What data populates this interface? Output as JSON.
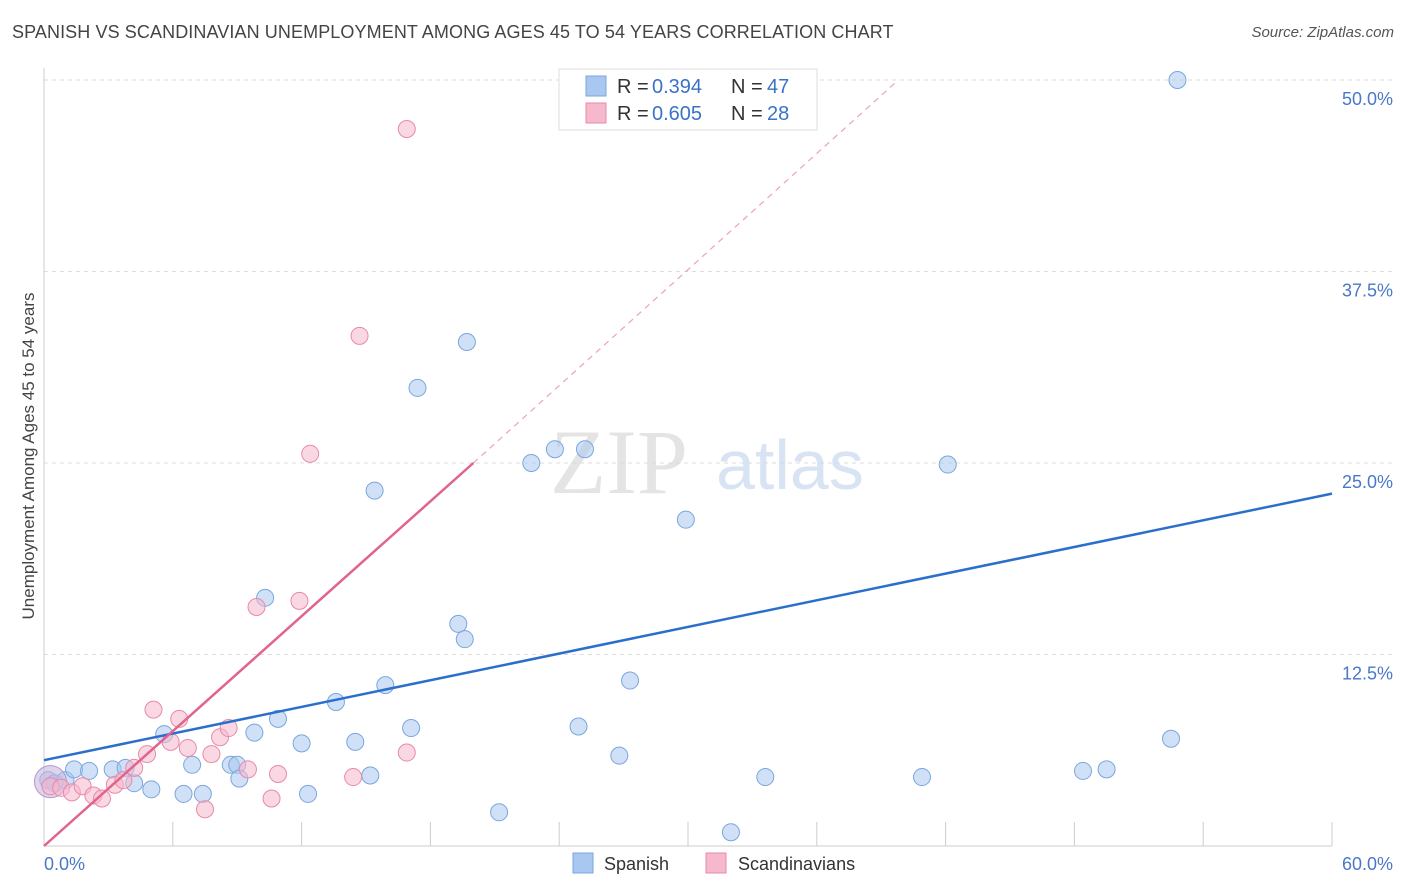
{
  "title": "SPANISH VS SCANDINAVIAN UNEMPLOYMENT AMONG AGES 45 TO 54 YEARS CORRELATION CHART",
  "source": "Source: ZipAtlas.com",
  "watermark": {
    "zip": "ZIP",
    "atlas": "atlas"
  },
  "colors": {
    "spanish_fill": "#a9c8f0",
    "spanish_stroke": "#7aa6de",
    "spanish_line": "#2b6fcc",
    "scand_fill": "#f5b8cc",
    "scand_stroke": "#e88aa8",
    "scand_line": "#e0648c",
    "tick_label": "#4a78c8",
    "grid": "#dddddd"
  },
  "legend": {
    "rows": [
      {
        "r_label": "R =",
        "r_value": "0.394",
        "n_label": "N =",
        "n_value": "47"
      },
      {
        "r_label": "R =",
        "r_value": "0.605",
        "n_label": "N =",
        "n_value": "28"
      }
    ]
  },
  "bottom_legend": [
    "Spanish",
    "Scandinavians"
  ],
  "chart_data": {
    "type": "scatter",
    "title": "SPANISH VS SCANDINAVIAN UNEMPLOYMENT AMONG AGES 45 TO 54 YEARS CORRELATION CHART",
    "xlabel": "",
    "ylabel": "Unemployment Among Ages 45 to 54 years",
    "xlim": [
      0,
      60
    ],
    "ylim": [
      0,
      51
    ],
    "x_tick_labels": [
      {
        "value": 0,
        "label": "0.0%"
      },
      {
        "value": 60,
        "label": "60.0%"
      }
    ],
    "y_tick_labels": [
      {
        "value": 12.5,
        "label": "12.5%"
      },
      {
        "value": 25,
        "label": "25.0%"
      },
      {
        "value": 37.5,
        "label": "37.5%"
      },
      {
        "value": 50,
        "label": "50.0%"
      }
    ],
    "x_ticks": [
      6,
      12,
      18,
      24,
      30,
      36,
      42,
      48,
      54,
      60
    ],
    "series": [
      {
        "name": "Spanish",
        "r": 0.394,
        "n": 47,
        "trend": {
          "x": [
            0,
            60
          ],
          "y": [
            5.6,
            23.0
          ]
        },
        "points": [
          [
            0.2,
            4.3
          ],
          [
            0.5,
            4.1
          ],
          [
            1.0,
            4.3
          ],
          [
            1.4,
            5.0
          ],
          [
            2.1,
            4.9
          ],
          [
            3.2,
            5.0
          ],
          [
            3.8,
            5.1
          ],
          [
            4.2,
            4.1
          ],
          [
            5.0,
            3.7
          ],
          [
            5.6,
            7.3
          ],
          [
            6.5,
            3.4
          ],
          [
            6.9,
            5.3
          ],
          [
            7.4,
            3.4
          ],
          [
            8.7,
            5.3
          ],
          [
            9.0,
            5.3
          ],
          [
            9.1,
            4.4
          ],
          [
            9.8,
            7.4
          ],
          [
            10.3,
            16.2
          ],
          [
            10.9,
            8.3
          ],
          [
            12.0,
            6.7
          ],
          [
            12.3,
            3.4
          ],
          [
            13.6,
            9.4
          ],
          [
            14.5,
            6.8
          ],
          [
            15.2,
            4.6
          ],
          [
            15.4,
            23.2
          ],
          [
            15.9,
            10.5
          ],
          [
            17.1,
            7.7
          ],
          [
            17.4,
            29.9
          ],
          [
            19.3,
            14.5
          ],
          [
            19.6,
            13.5
          ],
          [
            19.7,
            32.9
          ],
          [
            21.2,
            2.2
          ],
          [
            22.7,
            25.0
          ],
          [
            23.8,
            25.9
          ],
          [
            25.2,
            25.9
          ],
          [
            24.9,
            7.8
          ],
          [
            26.8,
            5.9
          ],
          [
            27.3,
            10.8
          ],
          [
            29.9,
            21.3
          ],
          [
            32.0,
            0.9
          ],
          [
            33.6,
            4.5
          ],
          [
            40.9,
            4.5
          ],
          [
            42.1,
            24.9
          ],
          [
            48.4,
            4.9
          ],
          [
            52.5,
            7.0
          ],
          [
            52.8,
            50.0
          ],
          [
            49.5,
            5.0
          ]
        ]
      },
      {
        "name": "Scandinavians",
        "r": 0.605,
        "n": 28,
        "trend": {
          "x": [
            0,
            20.0
          ],
          "y": [
            0,
            25.0
          ]
        },
        "trend_extension": {
          "x": [
            20.0,
            39.8
          ],
          "y": [
            25.0,
            50.0
          ]
        },
        "points": [
          [
            0.3,
            3.9
          ],
          [
            0.8,
            3.8
          ],
          [
            1.3,
            3.5
          ],
          [
            1.8,
            3.9
          ],
          [
            2.3,
            3.3
          ],
          [
            2.7,
            3.1
          ],
          [
            3.3,
            4.0
          ],
          [
            3.7,
            4.3
          ],
          [
            4.2,
            5.1
          ],
          [
            4.8,
            6.0
          ],
          [
            5.1,
            8.9
          ],
          [
            5.9,
            6.8
          ],
          [
            6.3,
            8.3
          ],
          [
            6.7,
            6.4
          ],
          [
            7.5,
            2.4
          ],
          [
            7.8,
            6.0
          ],
          [
            8.2,
            7.1
          ],
          [
            8.6,
            7.7
          ],
          [
            9.5,
            5.0
          ],
          [
            9.9,
            15.6
          ],
          [
            10.6,
            3.1
          ],
          [
            10.9,
            4.7
          ],
          [
            11.9,
            16.0
          ],
          [
            12.4,
            25.6
          ],
          [
            14.4,
            4.5
          ],
          [
            14.7,
            33.3
          ],
          [
            16.9,
            46.8
          ],
          [
            16.9,
            6.1
          ]
        ]
      }
    ]
  }
}
